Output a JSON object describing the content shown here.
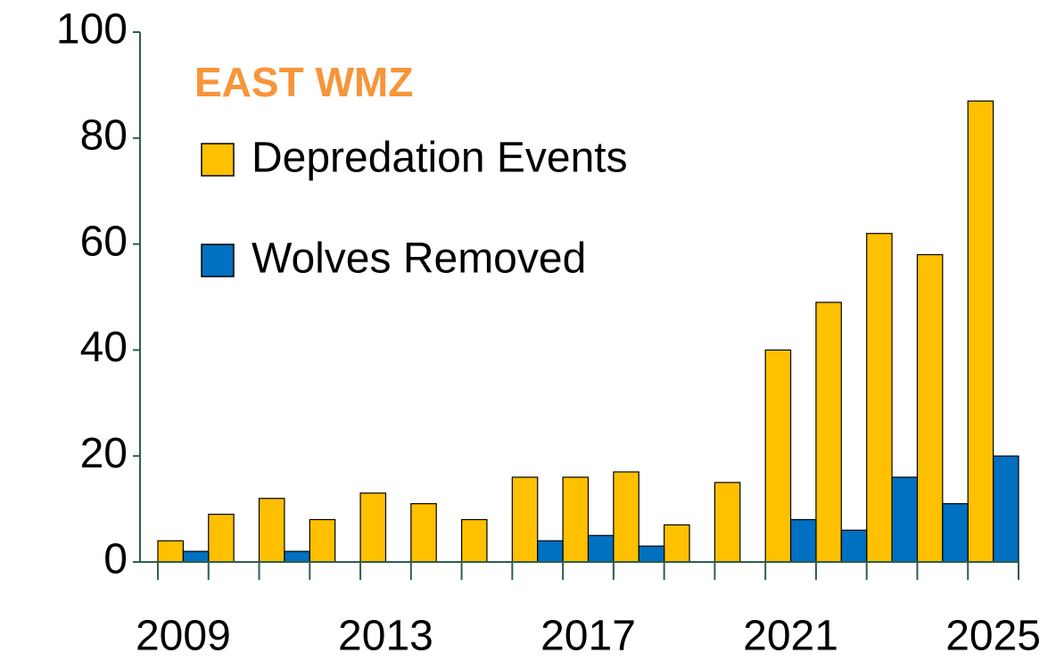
{
  "chart_data": {
    "type": "bar",
    "title": "EAST WMZ",
    "title_color": "#f7953a",
    "categories": [
      "2009",
      null,
      null,
      null,
      "2013",
      null,
      null,
      null,
      "2017",
      null,
      null,
      null,
      "2021",
      null,
      null,
      null,
      "2025"
    ],
    "series": [
      {
        "name": "Depredation Events",
        "color": "#ffc000",
        "values": [
          4,
          9,
          12,
          8,
          13,
          11,
          8,
          16,
          16,
          17,
          7,
          15,
          40,
          49,
          62,
          58,
          87
        ]
      },
      {
        "name": "Wolves Removed",
        "color": "#0070c0",
        "values": [
          2,
          0,
          2,
          0,
          0,
          0,
          0,
          4,
          5,
          3,
          0,
          0,
          8,
          6,
          16,
          11,
          20
        ]
      }
    ],
    "ylim": [
      0,
      100
    ],
    "yticks": [
      0,
      20,
      40,
      60,
      80,
      100
    ],
    "axis_color": "#2e5e4e",
    "legend": "upper left"
  }
}
